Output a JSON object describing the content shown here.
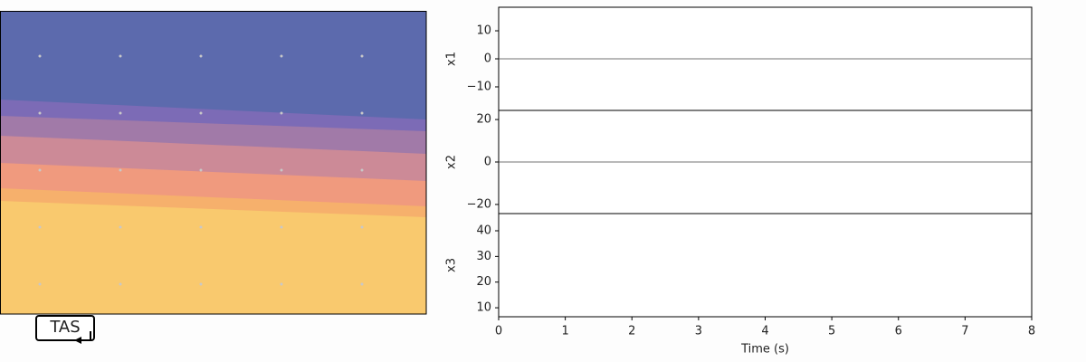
{
  "controls": {
    "button": "TAS"
  },
  "chart_data": [
    {
      "type": "line",
      "ylabel": "x1",
      "ylim": [
        -18.4,
        18.4
      ],
      "yticks": [
        {
          "value": -10,
          "label": "−10"
        },
        0,
        10
      ],
      "reference_line": 0
    },
    {
      "type": "line",
      "ylabel": "x2",
      "ylim": [
        -24.3,
        24.3
      ],
      "yticks": [
        {
          "value": -20,
          "label": "−20"
        },
        0,
        20
      ],
      "reference_line": 0
    },
    {
      "type": "line",
      "ylabel": "x3",
      "ylim": [
        6.5,
        46.7
      ],
      "yticks": [
        10,
        20,
        30,
        40
      ],
      "xlabel": "Time (s)",
      "xlim": [
        0,
        8
      ],
      "xticks": [
        0,
        1,
        2,
        3,
        4,
        5,
        6,
        7,
        8
      ]
    }
  ]
}
